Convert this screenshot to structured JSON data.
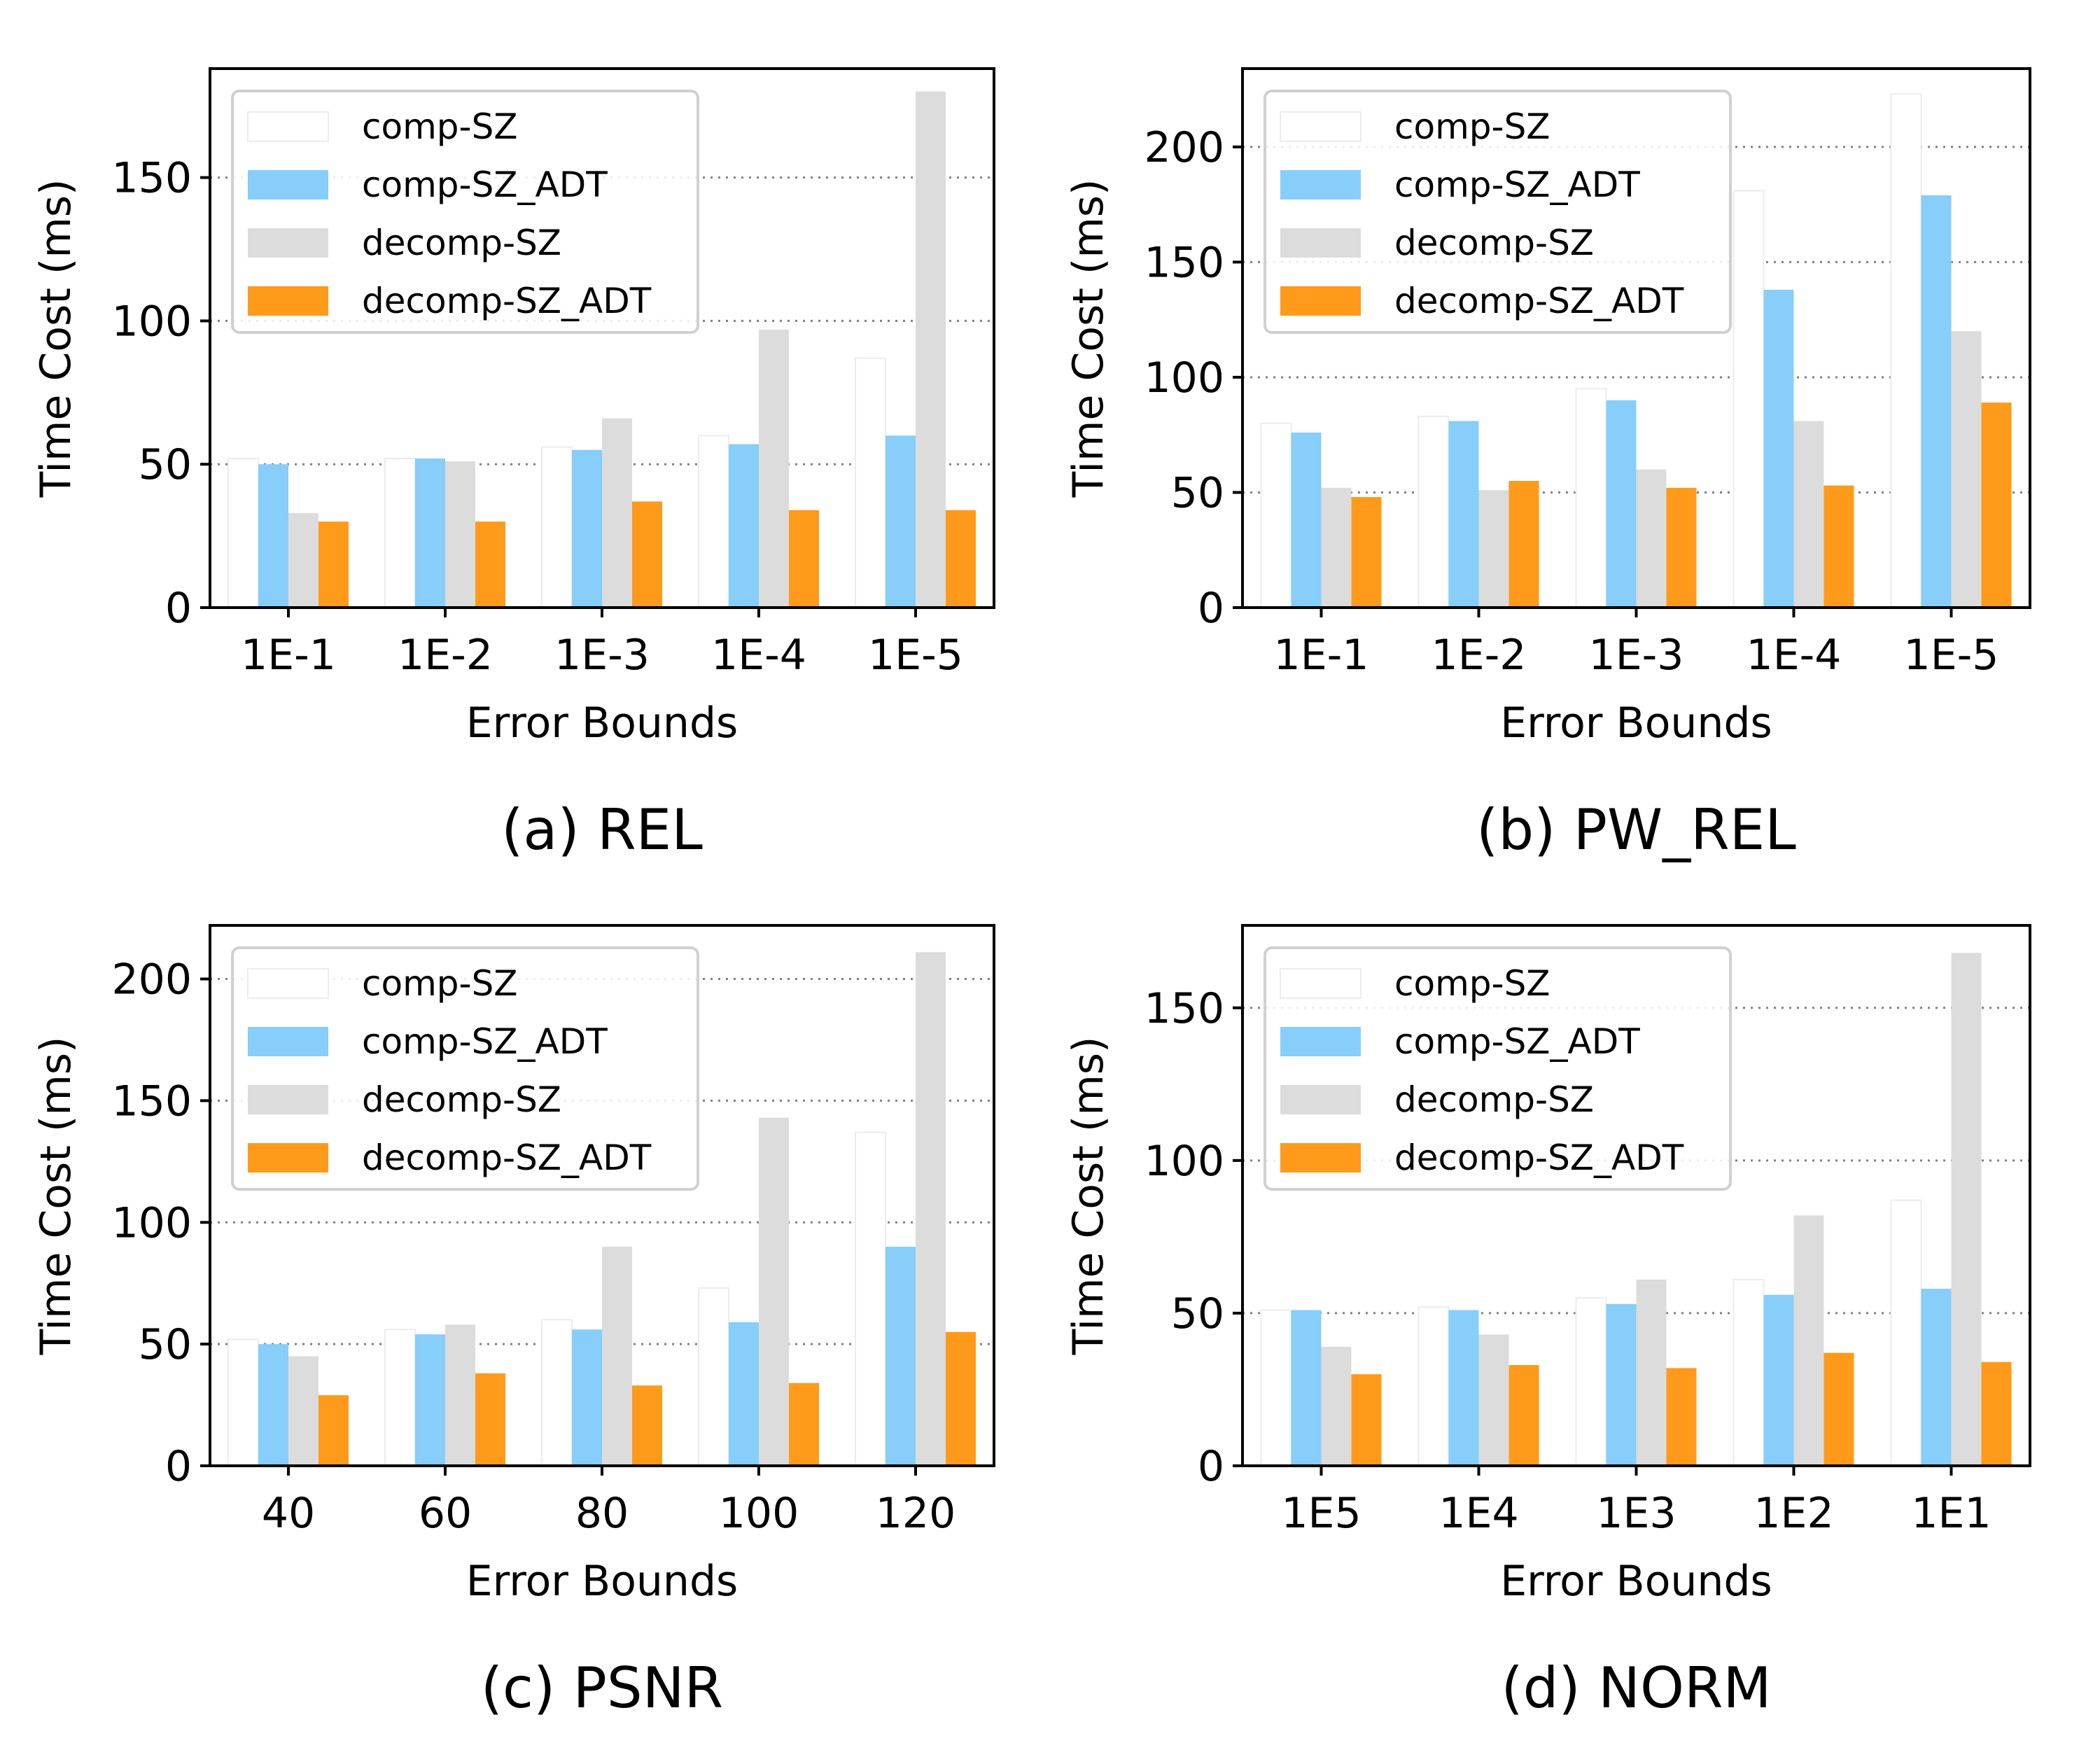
{
  "chart_data": [
    {
      "type": "bar",
      "caption": "(a) REL",
      "xlabel": "Error Bounds",
      "ylabel": "Time Cost (ms)",
      "categories": [
        "1E-1",
        "1E-2",
        "1E-3",
        "1E-4",
        "1E-5"
      ],
      "ylim": [
        0,
        188
      ],
      "yticks": [
        0,
        50,
        100,
        150
      ],
      "series": [
        {
          "name": "comp-SZ",
          "values": [
            52,
            52,
            56,
            60,
            87
          ]
        },
        {
          "name": "comp-SZ_ADT",
          "values": [
            50,
            52,
            55,
            57,
            60
          ]
        },
        {
          "name": "decomp-SZ",
          "values": [
            33,
            51,
            66,
            97,
            180
          ]
        },
        {
          "name": "decomp-SZ_ADT",
          "values": [
            30,
            30,
            37,
            34,
            34
          ]
        }
      ],
      "legend": "top-left",
      "grid": "horizontal dotted"
    },
    {
      "type": "bar",
      "caption": "(b) PW_REL",
      "xlabel": "Error Bounds",
      "ylabel": "Time Cost (ms)",
      "categories": [
        "1E-1",
        "1E-2",
        "1E-3",
        "1E-4",
        "1E-5"
      ],
      "ylim": [
        0,
        234
      ],
      "yticks": [
        0,
        50,
        100,
        150,
        200
      ],
      "series": [
        {
          "name": "comp-SZ",
          "values": [
            80,
            83,
            95,
            181,
            223
          ]
        },
        {
          "name": "comp-SZ_ADT",
          "values": [
            76,
            81,
            90,
            138,
            179
          ]
        },
        {
          "name": "decomp-SZ",
          "values": [
            52,
            51,
            60,
            81,
            120
          ]
        },
        {
          "name": "decomp-SZ_ADT",
          "values": [
            48,
            55,
            52,
            53,
            89
          ]
        }
      ],
      "legend": "top-left",
      "grid": "horizontal dotted"
    },
    {
      "type": "bar",
      "caption": "(c) PSNR",
      "xlabel": "Error Bounds",
      "ylabel": "Time Cost (ms)",
      "categories": [
        "40",
        "60",
        "80",
        "100",
        "120"
      ],
      "ylim": [
        0,
        222
      ],
      "yticks": [
        0,
        50,
        100,
        150,
        200
      ],
      "series": [
        {
          "name": "comp-SZ",
          "values": [
            52,
            56,
            60,
            73,
            137
          ]
        },
        {
          "name": "comp-SZ_ADT",
          "values": [
            50,
            54,
            56,
            59,
            90
          ]
        },
        {
          "name": "decomp-SZ",
          "values": [
            45,
            58,
            90,
            143,
            211
          ]
        },
        {
          "name": "decomp-SZ_ADT",
          "values": [
            29,
            38,
            33,
            34,
            55
          ]
        }
      ],
      "legend": "top-left",
      "grid": "horizontal dotted"
    },
    {
      "type": "bar",
      "caption": "(d) NORM",
      "xlabel": "Error Bounds",
      "ylabel": "Time Cost (ms)",
      "categories": [
        "1E5",
        "1E4",
        "1E3",
        "1E2",
        "1E1"
      ],
      "ylim": [
        0,
        177
      ],
      "yticks": [
        0,
        50,
        100,
        150
      ],
      "series": [
        {
          "name": "comp-SZ",
          "values": [
            51,
            52,
            55,
            61,
            87
          ]
        },
        {
          "name": "comp-SZ_ADT",
          "values": [
            51,
            51,
            53,
            56,
            58
          ]
        },
        {
          "name": "decomp-SZ",
          "values": [
            39,
            43,
            61,
            82,
            168
          ]
        },
        {
          "name": "decomp-SZ_ADT",
          "values": [
            30,
            33,
            32,
            37,
            34
          ]
        }
      ],
      "legend": "top-left",
      "grid": "horizontal dotted"
    }
  ],
  "series_colors": [
    "#ffffff",
    "#87cefa",
    "#dcdcdc",
    "#ff9a1a"
  ]
}
